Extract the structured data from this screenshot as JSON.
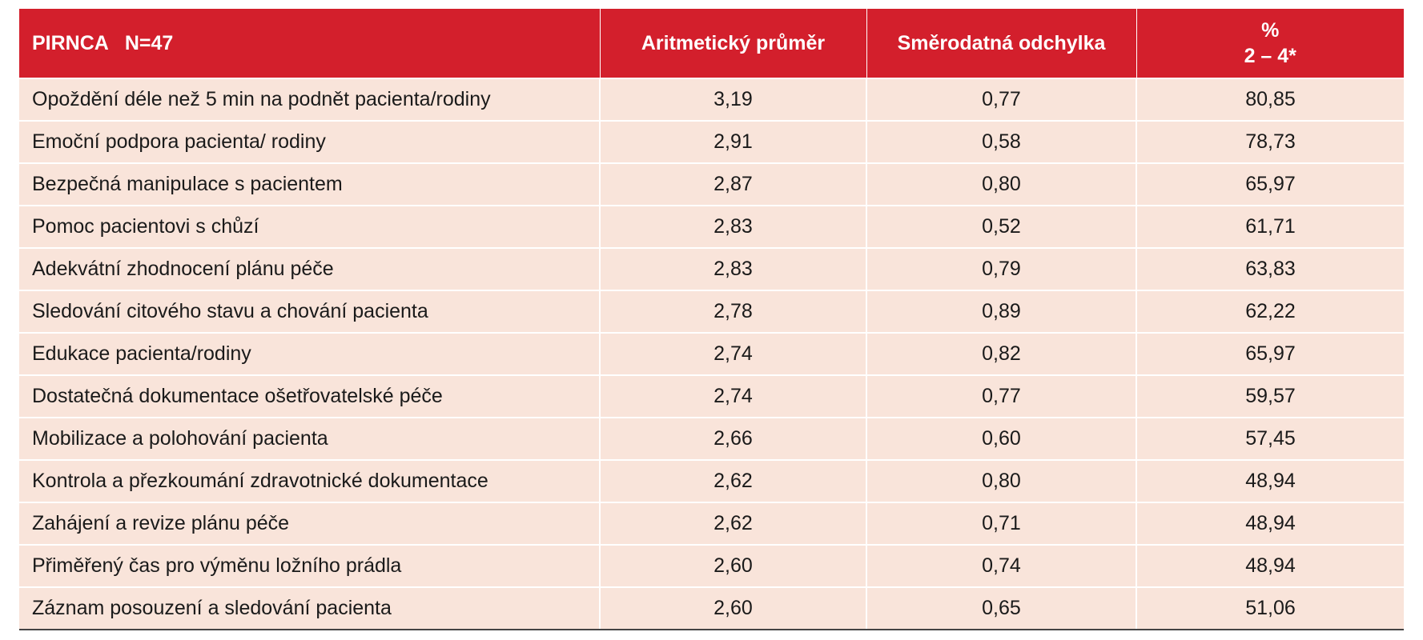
{
  "table": {
    "header": {
      "col1_a": "PIRNCA",
      "col1_b": "N=47",
      "col2": "Aritmetický průměr",
      "col3": "Směrodatná odchylka",
      "col4_line1": "%",
      "col4_line2": "2 – 4*"
    },
    "rows": [
      {
        "label": "Opoždění déle než 5 min na podnět pacienta/rodiny",
        "mean": "3,19",
        "sd": "0,77",
        "pct": "80,85"
      },
      {
        "label": "Emoční podpora pacienta/ rodiny",
        "mean": "2,91",
        "sd": "0,58",
        "pct": "78,73"
      },
      {
        "label": "Bezpečná manipulace s pacientem",
        "mean": "2,87",
        "sd": "0,80",
        "pct": "65,97"
      },
      {
        "label": "Pomoc pacientovi s chůzí",
        "mean": "2,83",
        "sd": "0,52",
        "pct": "61,71"
      },
      {
        "label": "Adekvátní zhodnocení plánu péče",
        "mean": "2,83",
        "sd": "0,79",
        "pct": "63,83"
      },
      {
        "label": "Sledování citového stavu a chování pacienta",
        "mean": "2,78",
        "sd": "0,89",
        "pct": "62,22"
      },
      {
        "label": "Edukace pacienta/rodiny",
        "mean": "2,74",
        "sd": "0,82",
        "pct": "65,97"
      },
      {
        "label": "Dostatečná dokumentace ošetřovatelské péče",
        "mean": "2,74",
        "sd": "0,77",
        "pct": "59,57"
      },
      {
        "label": "Mobilizace a polohování pacienta",
        "mean": "2,66",
        "sd": "0,60",
        "pct": "57,45"
      },
      {
        "label": "Kontrola a přezkoumání zdravotnické dokumentace",
        "mean": "2,62",
        "sd": "0,80",
        "pct": "48,94"
      },
      {
        "label": "Zahájení a revize plánu péče",
        "mean": "2,62",
        "sd": "0,71",
        "pct": "48,94"
      },
      {
        "label": "Přiměřený čas pro výměnu ložního prádla",
        "mean": "2,60",
        "sd": "0,74",
        "pct": "48,94"
      },
      {
        "label": "Záznam posouzení a sledování pacienta",
        "mean": "2,60",
        "sd": "0,65",
        "pct": "51,06"
      }
    ],
    "colors": {
      "header_bg": "#d31f2c",
      "row_bg": "#f9e4da"
    }
  }
}
